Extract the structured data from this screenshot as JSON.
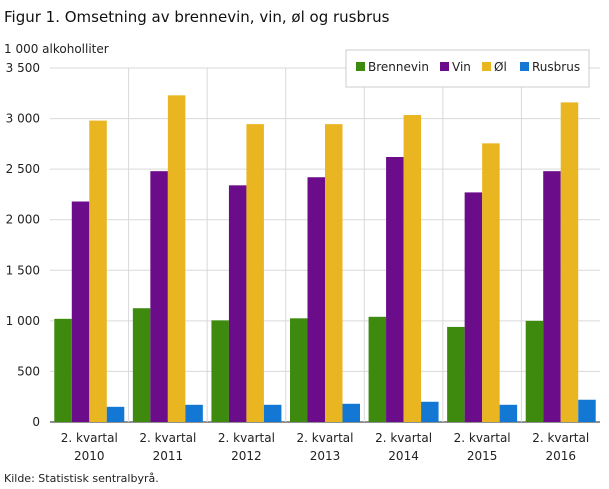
{
  "title": "Figur 1. Omsetning av brennevin, vin, øl og rusbrus",
  "unit_label": "1 000 alkoholliter",
  "source": "Kilde: Statistisk sentralbyrå.",
  "chart_data": {
    "type": "bar",
    "title": "Figur 1. Omsetning av brennevin, vin, øl og rusbrus",
    "ylabel": "1 000 alkoholliter",
    "xlabel": "",
    "ylim": [
      0,
      3500
    ],
    "yticks": [
      0,
      500,
      1000,
      1500,
      2000,
      2500,
      3000,
      3500
    ],
    "ytick_labels": [
      "0",
      "500",
      "1 000",
      "1 500",
      "2 000",
      "2 500",
      "3 000",
      "3 500"
    ],
    "grid": "vertical-separators",
    "legend_position": "top-right",
    "categories": [
      [
        "2. kvartal",
        "2010"
      ],
      [
        "2. kvartal",
        "2011"
      ],
      [
        "2. kvartal",
        "2012"
      ],
      [
        "2. kvartal",
        "2013"
      ],
      [
        "2. kvartal",
        "2014"
      ],
      [
        "2. kvartal",
        "2015"
      ],
      [
        "2. kvartal",
        "2016"
      ]
    ],
    "series": [
      {
        "name": "Brennevin",
        "color": "#3e8a0f",
        "values": [
          1020,
          1125,
          1005,
          1025,
          1040,
          940,
          1000
        ]
      },
      {
        "name": "Vin",
        "color": "#6b0c8a",
        "values": [
          2180,
          2480,
          2340,
          2420,
          2620,
          2270,
          2480
        ]
      },
      {
        "name": "Øl",
        "color": "#e9b521",
        "values": [
          2980,
          3230,
          2945,
          2945,
          3035,
          2755,
          3160
        ]
      },
      {
        "name": "Rusbrus",
        "color": "#1378d4",
        "values": [
          150,
          170,
          170,
          180,
          200,
          170,
          220
        ]
      }
    ]
  }
}
